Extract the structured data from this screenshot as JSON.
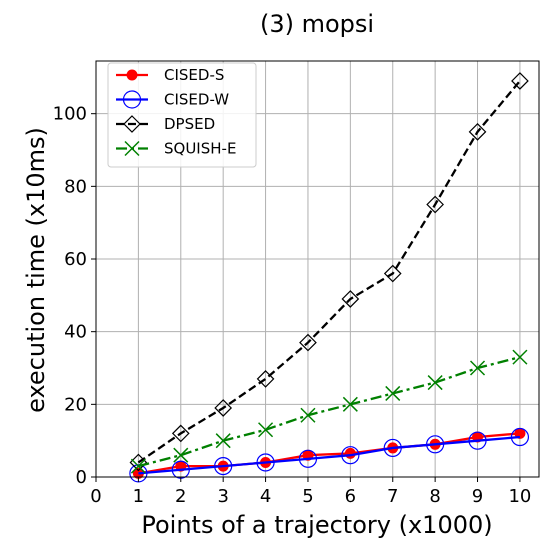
{
  "chart_data": {
    "type": "line",
    "title": "(3) mopsi",
    "xlabel": "Points of a trajectory (x1000)",
    "ylabel": "execution time (x10ms)",
    "xlim": [
      0,
      10.45
    ],
    "ylim": [
      0,
      114.5
    ],
    "xticks": [
      0,
      1,
      2,
      3,
      4,
      5,
      6,
      7,
      8,
      9,
      10
    ],
    "yticks": [
      0,
      20,
      40,
      60,
      80,
      100
    ],
    "grid": true,
    "legend_position": "top-left",
    "x": [
      1,
      2,
      3,
      4,
      5,
      6,
      7,
      8,
      9,
      10
    ],
    "series": [
      {
        "name": "CISED-S",
        "color": "#ff0000",
        "marker": "circle-filled",
        "dash": "solid",
        "values": [
          1,
          3,
          3,
          4,
          6,
          6.5,
          8,
          9,
          11,
          12
        ]
      },
      {
        "name": "CISED-W",
        "color": "#0000ff",
        "marker": "circle-open",
        "dash": "solid",
        "values": [
          1,
          2,
          3,
          4,
          5,
          6,
          8,
          9,
          10,
          11
        ]
      },
      {
        "name": "DPSED",
        "color": "#000000",
        "marker": "diamond-open",
        "dash": "dashed",
        "values": [
          4,
          12,
          19,
          27,
          37,
          49,
          56,
          75,
          95,
          109
        ]
      },
      {
        "name": "SQUISH-E",
        "color": "#008000",
        "marker": "x",
        "dash": "dashdot",
        "values": [
          3,
          6,
          10,
          13,
          17,
          20,
          23,
          26,
          30,
          33
        ]
      }
    ]
  }
}
